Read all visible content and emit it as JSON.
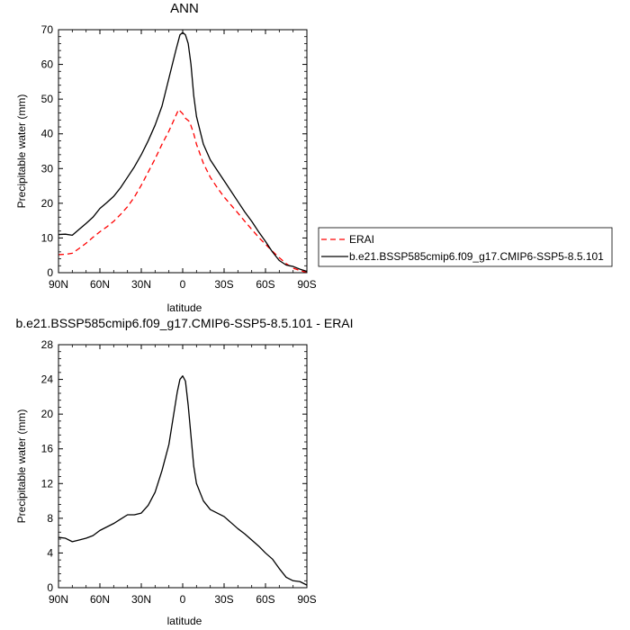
{
  "chart_data": [
    {
      "type": "line",
      "title": "ANN",
      "xlabel": "latitude",
      "ylabel": "Precipitable water (mm)",
      "xlim": [
        90,
        -90
      ],
      "ylim": [
        0,
        70
      ],
      "xticks": [
        90,
        60,
        30,
        0,
        -30,
        -60,
        -90
      ],
      "xtick_labels": [
        "90N",
        "60N",
        "30N",
        "0",
        "30S",
        "60S",
        "90S"
      ],
      "yticks": [
        0,
        10,
        20,
        30,
        40,
        50,
        60,
        70
      ],
      "ytick_labels": [
        "0",
        "10",
        "20",
        "30",
        "40",
        "50",
        "60",
        "70"
      ],
      "legend": {
        "placement": "right-outside"
      },
      "series": [
        {
          "name": "ERAI",
          "color": "#ff0000",
          "dash": "dashed",
          "points": [
            [
              90,
              5.2
            ],
            [
              85,
              5.3
            ],
            [
              80,
              5.6
            ],
            [
              75,
              7.0
            ],
            [
              70,
              8.5
            ],
            [
              65,
              10.2
            ],
            [
              60,
              11.8
            ],
            [
              55,
              13.2
            ],
            [
              50,
              14.8
            ],
            [
              45,
              16.8
            ],
            [
              40,
              19.0
            ],
            [
              35,
              21.8
            ],
            [
              30,
              25.2
            ],
            [
              25,
              29.0
            ],
            [
              20,
              32.8
            ],
            [
              15,
              37.0
            ],
            [
              10,
              40.8
            ],
            [
              5,
              45.2
            ],
            [
              3,
              47.0
            ],
            [
              0,
              45.8
            ],
            [
              -2,
              44.5
            ],
            [
              -5,
              43.5
            ],
            [
              -8,
              40.0
            ],
            [
              -10,
              37.0
            ],
            [
              -15,
              31.5
            ],
            [
              -20,
              27.5
            ],
            [
              -25,
              24.5
            ],
            [
              -30,
              21.8
            ],
            [
              -35,
              19.5
            ],
            [
              -40,
              17.2
            ],
            [
              -45,
              14.8
            ],
            [
              -50,
              12.5
            ],
            [
              -55,
              10.2
            ],
            [
              -60,
              8.2
            ],
            [
              -65,
              6.2
            ],
            [
              -70,
              4.3
            ],
            [
              -75,
              2.6
            ],
            [
              -80,
              1.3
            ],
            [
              -85,
              0.6
            ],
            [
              -90,
              0.1
            ]
          ]
        },
        {
          "name": "b.e21.BSSP585cmip6.f09_g17.CMIP6-SSP5-8.5.101",
          "color": "#000000",
          "dash": "solid",
          "points": [
            [
              90,
              11.0
            ],
            [
              85,
              11.1
            ],
            [
              80,
              10.8
            ],
            [
              75,
              12.5
            ],
            [
              70,
              14.2
            ],
            [
              65,
              16.0
            ],
            [
              60,
              18.5
            ],
            [
              55,
              20.2
            ],
            [
              50,
              22.0
            ],
            [
              45,
              24.5
            ],
            [
              40,
              27.5
            ],
            [
              35,
              30.5
            ],
            [
              30,
              34.0
            ],
            [
              25,
              38.0
            ],
            [
              20,
              42.5
            ],
            [
              15,
              48.0
            ],
            [
              10,
              56.0
            ],
            [
              5,
              64.0
            ],
            [
              2,
              68.5
            ],
            [
              0,
              69.2
            ],
            [
              -2,
              68.5
            ],
            [
              -4,
              66.0
            ],
            [
              -6,
              60.0
            ],
            [
              -8,
              51.0
            ],
            [
              -10,
              45.0
            ],
            [
              -15,
              37.0
            ],
            [
              -20,
              32.5
            ],
            [
              -25,
              29.5
            ],
            [
              -30,
              26.5
            ],
            [
              -35,
              23.5
            ],
            [
              -40,
              20.5
            ],
            [
              -45,
              17.5
            ],
            [
              -50,
              14.8
            ],
            [
              -55,
              11.8
            ],
            [
              -60,
              9.0
            ],
            [
              -65,
              6.0
            ],
            [
              -70,
              3.5
            ],
            [
              -75,
              2.2
            ],
            [
              -80,
              1.8
            ],
            [
              -85,
              1.0
            ],
            [
              -90,
              0.4
            ]
          ]
        }
      ]
    },
    {
      "type": "line",
      "title": "b.e21.BSSP585cmip6.f09_g17.CMIP6-SSP5-8.5.101 - ERAI",
      "xlabel": "latitude",
      "ylabel": "Precipitable water (mm)",
      "xlim": [
        90,
        -90
      ],
      "ylim": [
        0,
        28
      ],
      "xticks": [
        90,
        60,
        30,
        0,
        -30,
        -60,
        -90
      ],
      "xtick_labels": [
        "90N",
        "60N",
        "30N",
        "0",
        "30S",
        "60S",
        "90S"
      ],
      "yticks": [
        0,
        4,
        8,
        12,
        16,
        20,
        24,
        28
      ],
      "ytick_labels": [
        "0",
        "4",
        "8",
        "12",
        "16",
        "20",
        "24",
        "28"
      ],
      "series": [
        {
          "color": "#000000",
          "dash": "solid",
          "points": [
            [
              90,
              5.8
            ],
            [
              85,
              5.7
            ],
            [
              80,
              5.3
            ],
            [
              75,
              5.5
            ],
            [
              70,
              5.7
            ],
            [
              65,
              6.0
            ],
            [
              60,
              6.6
            ],
            [
              55,
              7.0
            ],
            [
              50,
              7.4
            ],
            [
              45,
              7.9
            ],
            [
              40,
              8.4
            ],
            [
              35,
              8.4
            ],
            [
              30,
              8.6
            ],
            [
              25,
              9.5
            ],
            [
              20,
              11.0
            ],
            [
              15,
              13.5
            ],
            [
              10,
              16.5
            ],
            [
              7,
              19.5
            ],
            [
              4,
              22.5
            ],
            [
              2,
              24.0
            ],
            [
              0,
              24.4
            ],
            [
              -2,
              23.8
            ],
            [
              -4,
              21.0
            ],
            [
              -6,
              17.5
            ],
            [
              -8,
              14.0
            ],
            [
              -10,
              12.0
            ],
            [
              -15,
              10.0
            ],
            [
              -20,
              9.0
            ],
            [
              -25,
              8.6
            ],
            [
              -30,
              8.2
            ],
            [
              -35,
              7.5
            ],
            [
              -40,
              6.8
            ],
            [
              -45,
              6.2
            ],
            [
              -50,
              5.5
            ],
            [
              -55,
              4.8
            ],
            [
              -60,
              4.0
            ],
            [
              -65,
              3.3
            ],
            [
              -70,
              2.2
            ],
            [
              -75,
              1.2
            ],
            [
              -80,
              0.8
            ],
            [
              -85,
              0.7
            ],
            [
              -90,
              0.3
            ]
          ]
        }
      ]
    }
  ]
}
